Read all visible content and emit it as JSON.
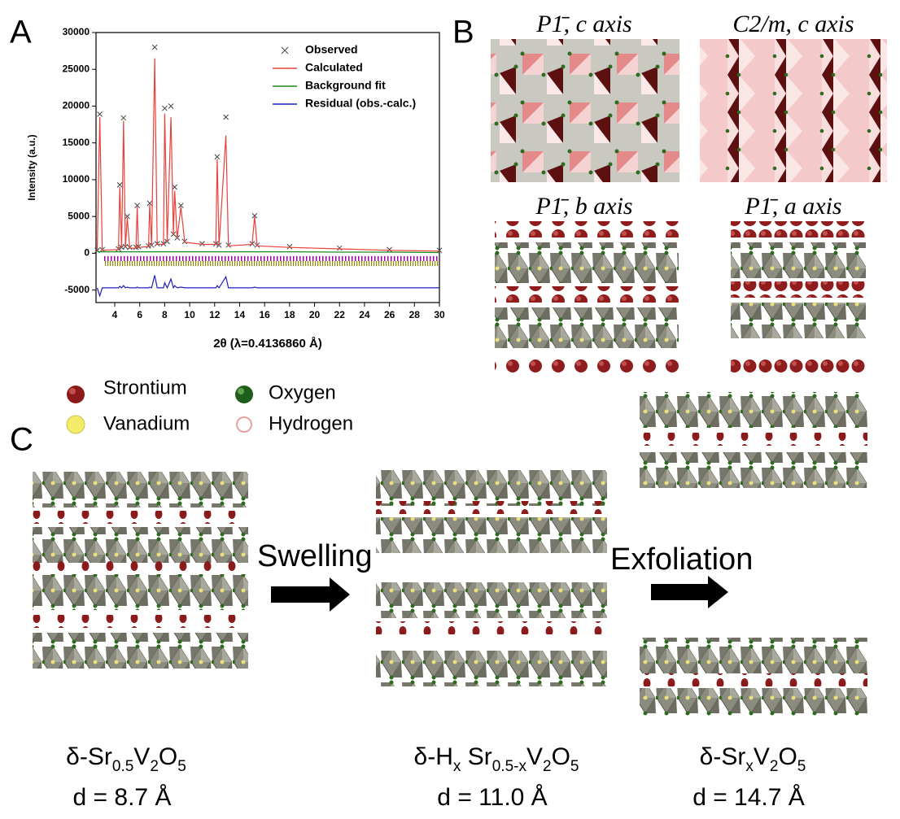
{
  "chart_data": {
    "type": "line",
    "x_label": "2θ (λ=0.4136860 Å)",
    "y_label": "Intensity (a.u.)",
    "x": [
      2.6,
      2.8,
      3.0,
      4.3,
      4.4,
      4.55,
      4.7,
      4.85,
      5.0,
      5.2,
      5.7,
      5.8,
      5.9,
      6.7,
      6.8,
      6.95,
      7.2,
      7.4,
      7.9,
      8.0,
      8.2,
      8.5,
      8.7,
      8.8,
      9.0,
      9.3,
      9.6,
      11.0,
      12.1,
      12.2,
      12.35,
      12.9,
      13.1,
      15.0,
      15.2,
      15.4,
      18,
      22,
      26,
      30
    ],
    "series": [
      {
        "name": "Observed",
        "color": "#444444",
        "marker": "x",
        "values": [
          400,
          18900,
          500,
          600,
          9300,
          800,
          18400,
          900,
          5000,
          800,
          800,
          6500,
          900,
          1000,
          6800,
          1100,
          28000,
          1300,
          1300,
          19700,
          1600,
          20000,
          2600,
          9000,
          2100,
          6500,
          1600,
          1300,
          1300,
          13100,
          1100,
          18500,
          1100,
          1300,
          5100,
          1100,
          900,
          700,
          500,
          400
        ]
      },
      {
        "name": "Calculated",
        "color": "#e8413b",
        "values": [
          300,
          18500,
          400,
          500,
          9000,
          700,
          18000,
          800,
          4800,
          700,
          700,
          6300,
          800,
          900,
          6600,
          1000,
          26500,
          1200,
          1200,
          19000,
          1500,
          18500,
          2500,
          8500,
          2000,
          6300,
          1500,
          1200,
          1200,
          12800,
          1000,
          16000,
          1000,
          1200,
          5000,
          1000,
          800,
          600,
          400,
          300
        ]
      },
      {
        "name": "Background fit",
        "color": "#1a8a1a",
        "values": [
          200,
          200,
          200,
          200,
          200,
          200,
          200,
          200,
          200,
          200,
          200,
          200,
          200,
          200,
          200,
          200,
          200,
          200,
          200,
          200,
          200,
          200,
          200,
          200,
          200,
          200,
          200,
          200,
          200,
          200,
          200,
          200,
          200,
          200,
          200,
          200,
          200,
          150,
          150,
          100
        ]
      },
      {
        "name": "Residual (obs.-calc.)",
        "color": "#1f1fbf",
        "values": [
          -4700,
          -5800,
          -4700,
          -4700,
          -4500,
          -4700,
          -4400,
          -4700,
          -4600,
          -4700,
          -4700,
          -4600,
          -4700,
          -4700,
          -4600,
          -4700,
          -3000,
          -4700,
          -4700,
          -4000,
          -4700,
          -3500,
          -4700,
          -4400,
          -4700,
          -4600,
          -4700,
          -4700,
          -4700,
          -4400,
          -4700,
          -3200,
          -4700,
          -4700,
          -4600,
          -4700,
          -4700,
          -4700,
          -4700,
          -4700
        ]
      }
    ],
    "xlim": [
      2.5,
      30
    ],
    "ylim": [
      -6700,
      30000
    ],
    "xticks": [
      4,
      6,
      8,
      10,
      12,
      14,
      16,
      18,
      20,
      22,
      24,
      26,
      28,
      30
    ],
    "yticks": [
      -5000,
      0,
      5000,
      10000,
      15000,
      20000,
      25000,
      30000
    ],
    "legend": "upper right"
  },
  "panels": {
    "a_label": "A",
    "b_label": "B",
    "c_label": "C",
    "b_titles": [
      "P1̄, c axis",
      "C2/m, c axis",
      "P1̄, b axis",
      "P1̄, a axis"
    ],
    "c_steps": [
      "Swelling",
      "Exfoliation"
    ],
    "formulas": [
      [
        "δ-Sr",
        "0.5",
        "V",
        "2",
        "O",
        "5"
      ],
      [
        "δ-H",
        "x",
        " Sr",
        "0.5-x",
        "V",
        "2",
        "O",
        "5"
      ],
      [
        "δ-Sr",
        "x",
        "V",
        "2",
        "O",
        "5"
      ]
    ],
    "spacings": [
      "d = 8.7 Å",
      "d = 11.0 Å",
      "d = 14.7 Å"
    ]
  },
  "atoms": [
    "Strontium",
    "Vanadium",
    "Oxygen",
    "Hydrogen"
  ]
}
